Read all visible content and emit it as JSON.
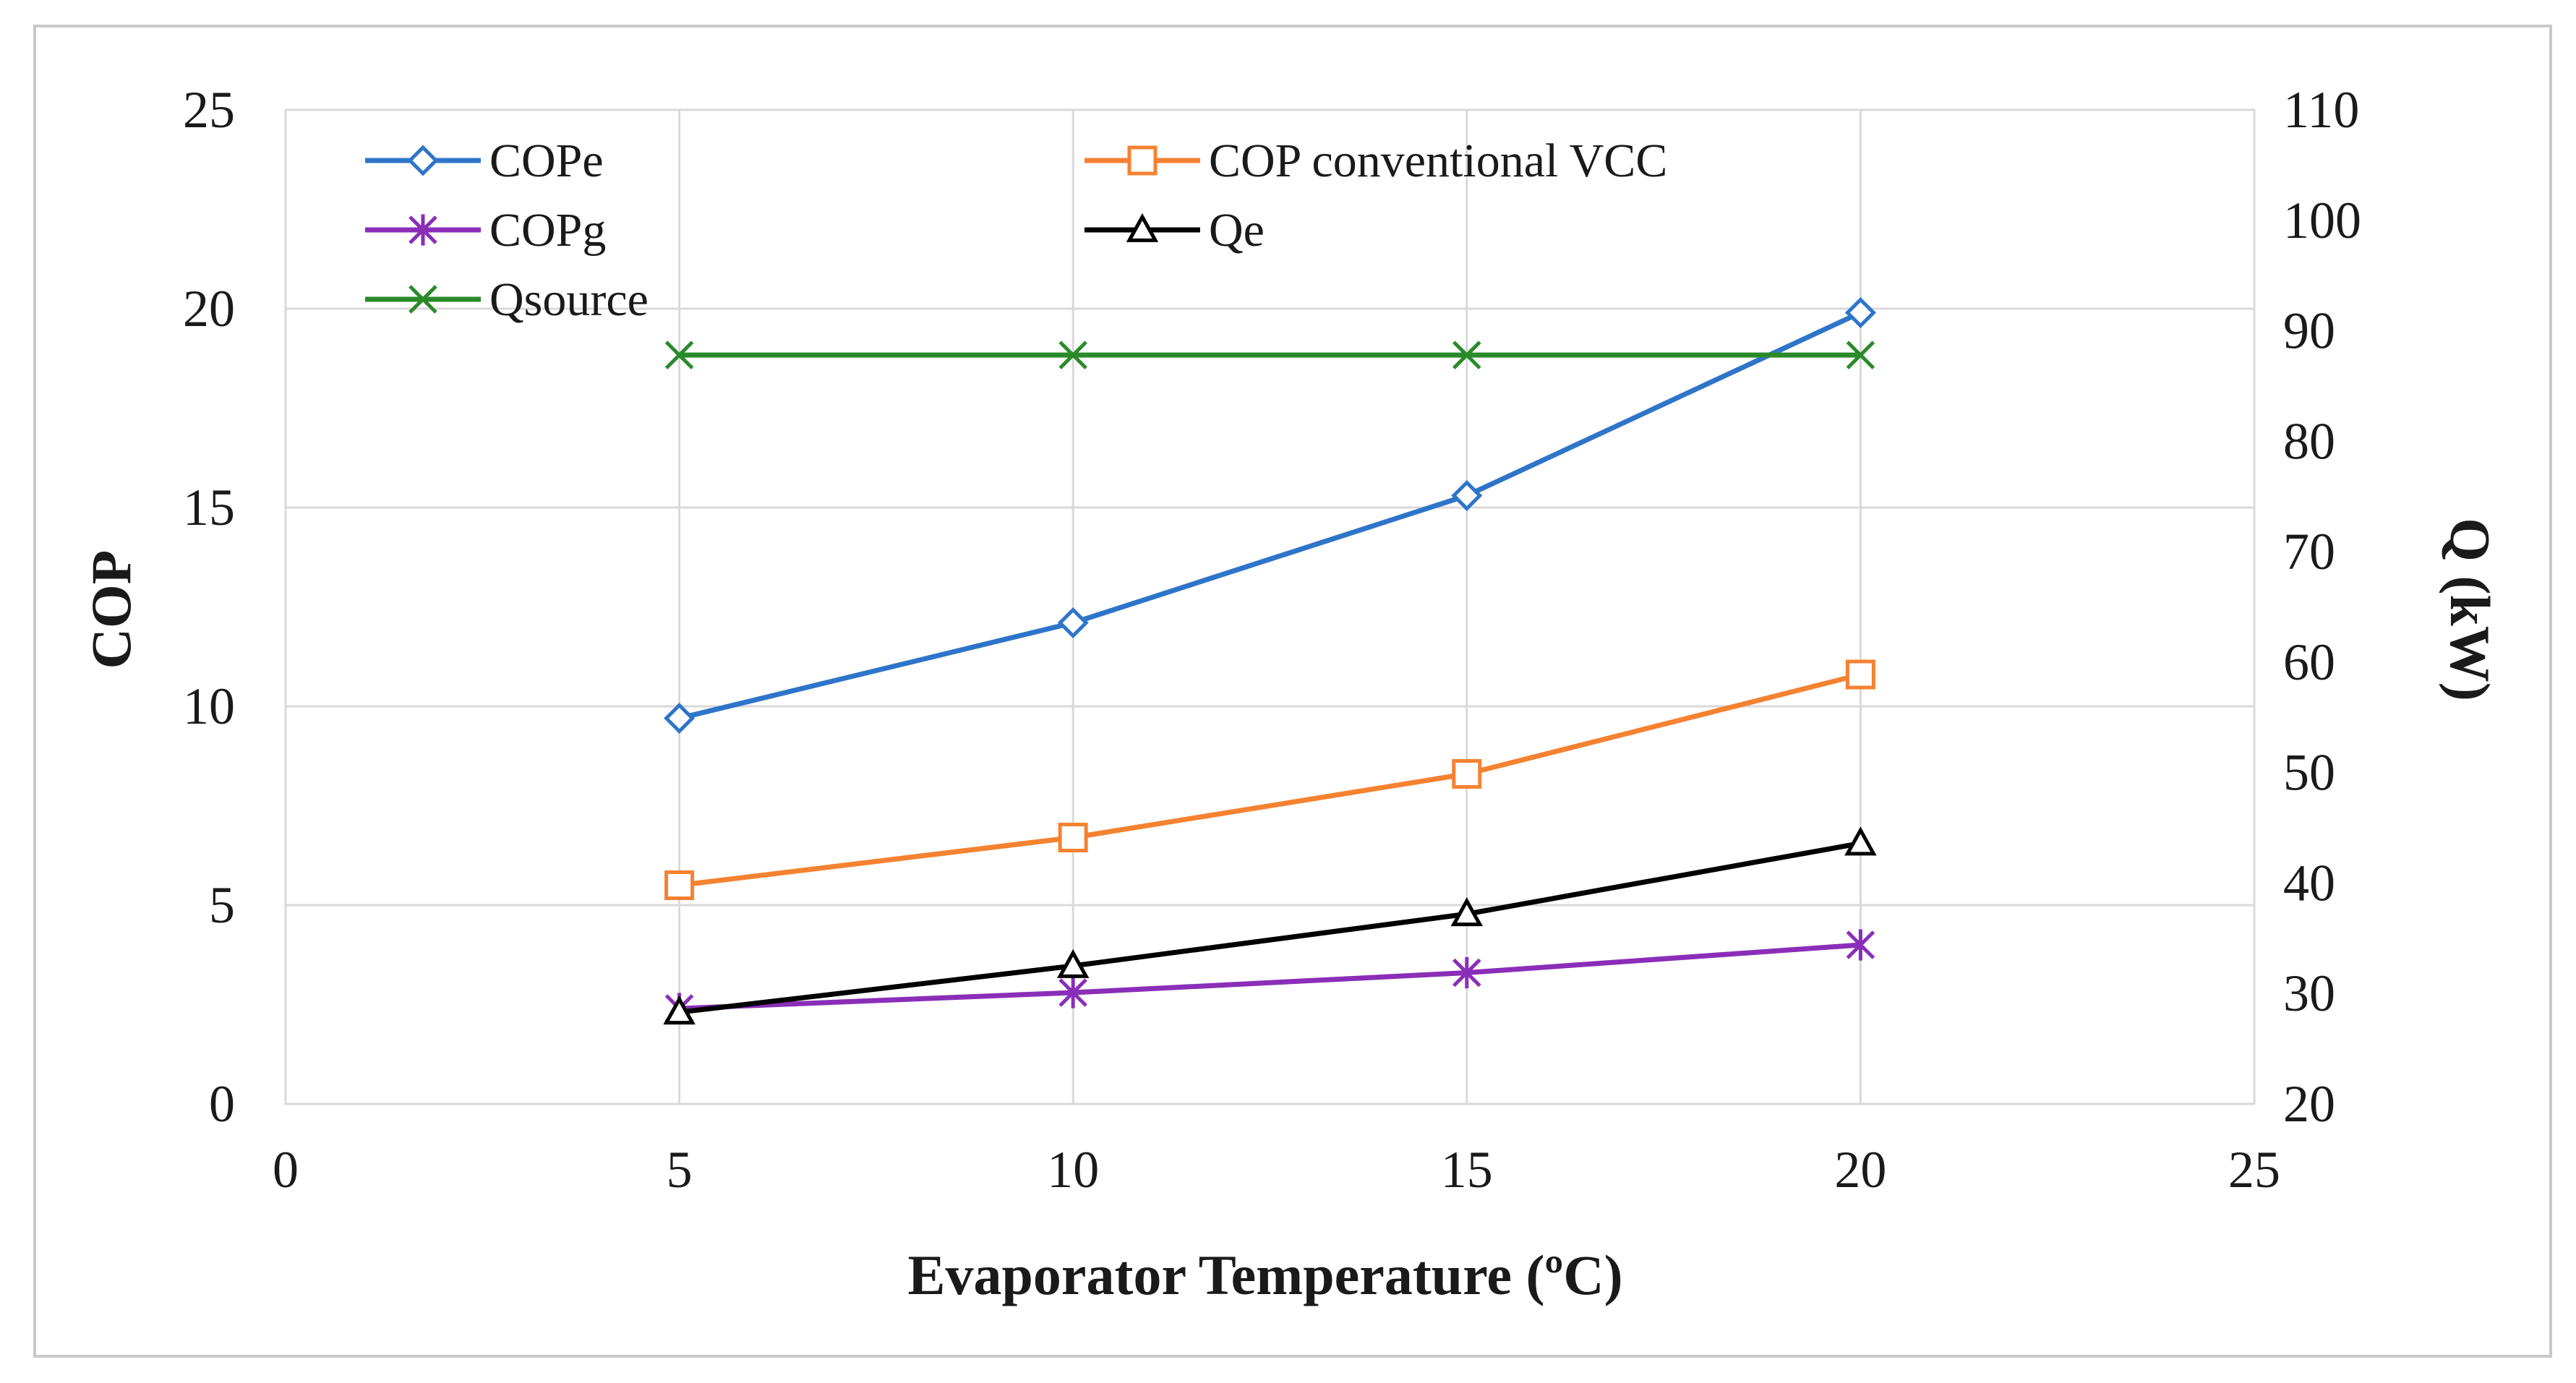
{
  "chart_data": {
    "type": "line",
    "title": "",
    "xlabel": "Evaporator Temperature  (ºC)",
    "ylabel": "COP",
    "y2label": "Q  (kW)",
    "xlim": [
      0,
      25
    ],
    "ylim": [
      0,
      25
    ],
    "y2lim": [
      20,
      110
    ],
    "xticks": [
      "0",
      "5",
      "10",
      "15",
      "20",
      "25"
    ],
    "yticks": [
      "0",
      "5",
      "10",
      "15",
      "20",
      "25"
    ],
    "y2ticks": [
      "20",
      "30",
      "40",
      "50",
      "60",
      "70",
      "80",
      "90",
      "100",
      "110"
    ],
    "x": [
      5,
      10,
      15,
      20
    ],
    "grid": true,
    "legend_position": "top-left",
    "series": [
      {
        "name": "COPe",
        "axis": "left",
        "color": "#2e75c9",
        "marker": "diamond",
        "values": [
          9.7,
          12.1,
          15.3,
          19.9
        ]
      },
      {
        "name": "COP conventional VCC",
        "axis": "left",
        "color": "#f58231",
        "marker": "square",
        "values": [
          5.5,
          6.7,
          8.3,
          10.8
        ]
      },
      {
        "name": "COPg",
        "axis": "left",
        "color": "#8a2eb8",
        "marker": "asterisk",
        "values": [
          2.4,
          2.8,
          3.3,
          4.0
        ]
      },
      {
        "name": "Qe",
        "axis": "right",
        "color": "#000000",
        "marker": "triangle",
        "values": [
          28.3,
          32.5,
          37.2,
          43.6
        ]
      },
      {
        "name": "Qsource",
        "axis": "right",
        "color": "#2a8a2a",
        "marker": "x",
        "values": [
          87.8,
          87.8,
          87.8,
          87.8
        ]
      }
    ]
  }
}
